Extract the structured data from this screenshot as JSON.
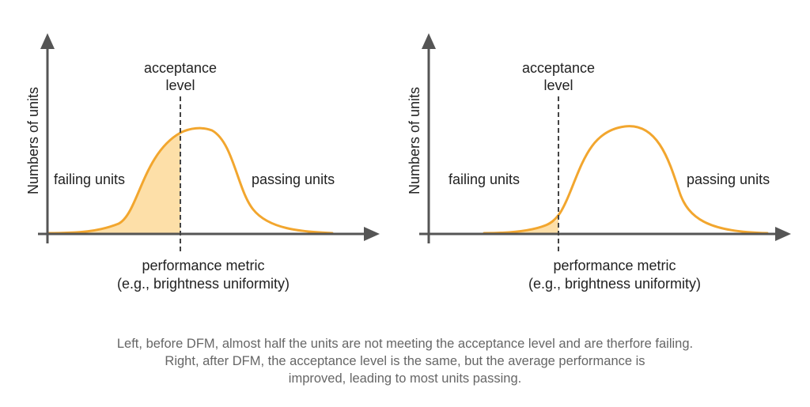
{
  "colors": {
    "curve": "#F2A62E",
    "fill": "#FDDFA8",
    "axis": "#555555",
    "caption": "#666666"
  },
  "panels": [
    {
      "name": "before-dfm",
      "y_axis_label": "Numbers of units",
      "acceptance_label": [
        "acceptance",
        "level"
      ],
      "failing_label": "failing units",
      "passing_label": "passing units",
      "x_axis_label": [
        "performance metric",
        "(e.g., brightness uniformity)"
      ]
    },
    {
      "name": "after-dfm",
      "y_axis_label": "Numbers of units",
      "acceptance_label": [
        "acceptance",
        "level"
      ],
      "failing_label": "failing units",
      "passing_label": "passing units",
      "x_axis_label": [
        "performance metric",
        "(e.g., brightness uniformity)"
      ]
    }
  ],
  "caption": [
    "Left, before DFM, almost half the units are not meeting the acceptance level and are therfore failing.",
    "Right, after DFM, the acceptance level is the same, but the average performance is",
    "improved, leading to most units passing."
  ]
}
